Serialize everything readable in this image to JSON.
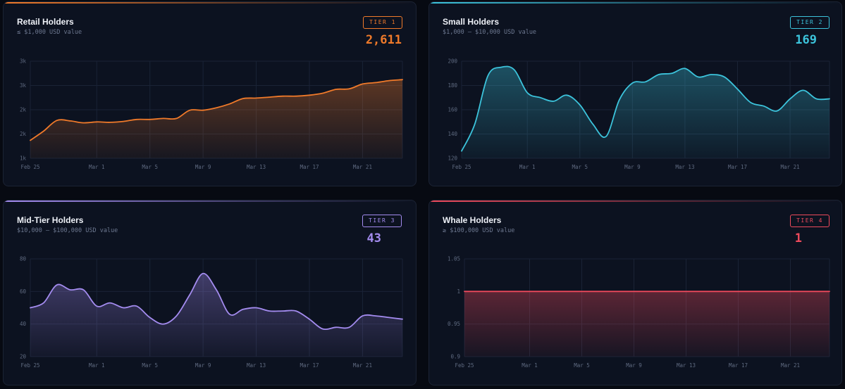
{
  "cards": [
    {
      "title": "Retail Holders",
      "subtitle": "≤ $1,000 USD value",
      "tier": "TIER 1",
      "count": "2,611",
      "color": "#f07a2a"
    },
    {
      "title": "Small Holders",
      "subtitle": "$1,000 – $10,000 USD value",
      "tier": "TIER 2",
      "count": "169",
      "color": "#3cc4dc"
    },
    {
      "title": "Mid-Tier Holders",
      "subtitle": "$10,000 – $100,000 USD value",
      "tier": "TIER 3",
      "count": "43",
      "color": "#a48cf0"
    },
    {
      "title": "Whale Holders",
      "subtitle": "≥ $100,000 USD value",
      "tier": "TIER 4",
      "count": "1",
      "color": "#ee4a5c"
    }
  ],
  "chart_data": [
    {
      "type": "area",
      "title": "Retail Holders",
      "x_ticks": [
        "Feb 25",
        "Mar 1",
        "Mar 5",
        "Mar 9",
        "Mar 13",
        "Mar 17",
        "Mar 21"
      ],
      "y_ticks": [
        "1k",
        "2k",
        "2k",
        "3k",
        "3k"
      ],
      "y_tick_values": [
        1000,
        1500,
        2000,
        2500,
        3000
      ],
      "ylim": [
        1000,
        3000
      ],
      "grid": true,
      "series": [
        {
          "x": [
            "Feb 25",
            "Feb 26",
            "Feb 27",
            "Feb 28",
            "Feb 29",
            "Mar 1",
            "Mar 2",
            "Mar 3",
            "Mar 4",
            "Mar 5",
            "Mar 6",
            "Mar 7",
            "Mar 8",
            "Mar 9",
            "Mar 10",
            "Mar 11",
            "Mar 12",
            "Mar 13",
            "Mar 14",
            "Mar 15",
            "Mar 16",
            "Mar 17",
            "Mar 18",
            "Mar 19",
            "Mar 20",
            "Mar 21",
            "Mar 22",
            "Mar 23",
            "Mar 24"
          ],
          "values": [
            1370,
            1560,
            1780,
            1770,
            1730,
            1750,
            1740,
            1760,
            1800,
            1800,
            1820,
            1820,
            1990,
            1990,
            2040,
            2120,
            2230,
            2240,
            2260,
            2280,
            2280,
            2300,
            2340,
            2420,
            2430,
            2530,
            2560,
            2600,
            2620
          ]
        }
      ]
    },
    {
      "type": "area",
      "title": "Small Holders",
      "x_ticks": [
        "Feb 25",
        "Mar 1",
        "Mar 5",
        "Mar 9",
        "Mar 13",
        "Mar 17",
        "Mar 21"
      ],
      "y_ticks": [
        "120",
        "140",
        "160",
        "180",
        "200"
      ],
      "ylim": [
        120,
        200
      ],
      "grid": true,
      "series": [
        {
          "x": [
            "Feb 25",
            "Feb 26",
            "Feb 27",
            "Feb 28",
            "Feb 29",
            "Mar 1",
            "Mar 2",
            "Mar 3",
            "Mar 4",
            "Mar 5",
            "Mar 6",
            "Mar 7",
            "Mar 8",
            "Mar 9",
            "Mar 10",
            "Mar 11",
            "Mar 12",
            "Mar 13",
            "Mar 14",
            "Mar 15",
            "Mar 16",
            "Mar 17",
            "Mar 18",
            "Mar 19",
            "Mar 20",
            "Mar 21",
            "Mar 22",
            "Mar 23",
            "Mar 24"
          ],
          "values": [
            126,
            148,
            188,
            195,
            193,
            174,
            170,
            167,
            172,
            164,
            148,
            138,
            168,
            182,
            183,
            189,
            190,
            194,
            187,
            189,
            187,
            177,
            166,
            163,
            159,
            169,
            176,
            169,
            169
          ]
        }
      ]
    },
    {
      "type": "area",
      "title": "Mid-Tier Holders",
      "x_ticks": [
        "Feb 25",
        "Mar 1",
        "Mar 5",
        "Mar 9",
        "Mar 13",
        "Mar 17",
        "Mar 21"
      ],
      "y_ticks": [
        "20",
        "40",
        "60",
        "80"
      ],
      "ylim": [
        20,
        80
      ],
      "grid": true,
      "series": [
        {
          "x": [
            "Feb 25",
            "Feb 26",
            "Feb 27",
            "Feb 28",
            "Feb 29",
            "Mar 1",
            "Mar 2",
            "Mar 3",
            "Mar 4",
            "Mar 5",
            "Mar 6",
            "Mar 7",
            "Mar 8",
            "Mar 9",
            "Mar 10",
            "Mar 11",
            "Mar 12",
            "Mar 13",
            "Mar 14",
            "Mar 15",
            "Mar 16",
            "Mar 17",
            "Mar 18",
            "Mar 19",
            "Mar 20",
            "Mar 21",
            "Mar 22",
            "Mar 23",
            "Mar 24"
          ],
          "values": [
            50,
            53,
            64,
            61,
            61,
            51,
            53,
            50,
            51,
            44,
            40,
            45,
            58,
            71,
            61,
            46,
            49,
            50,
            48,
            48,
            48,
            43,
            37,
            38,
            38,
            45,
            45,
            44,
            43
          ]
        }
      ]
    },
    {
      "type": "area",
      "title": "Whale Holders",
      "x_ticks": [
        "Feb 25",
        "Mar 1",
        "Mar 5",
        "Mar 9",
        "Mar 13",
        "Mar 17",
        "Mar 21"
      ],
      "y_ticks": [
        "0.9",
        "0.95",
        "1",
        "1.05"
      ],
      "ylim": [
        0.9,
        1.05
      ],
      "grid": true,
      "series": [
        {
          "x": [
            "Feb 25",
            "Mar 24"
          ],
          "values": [
            1,
            1
          ]
        }
      ]
    }
  ]
}
